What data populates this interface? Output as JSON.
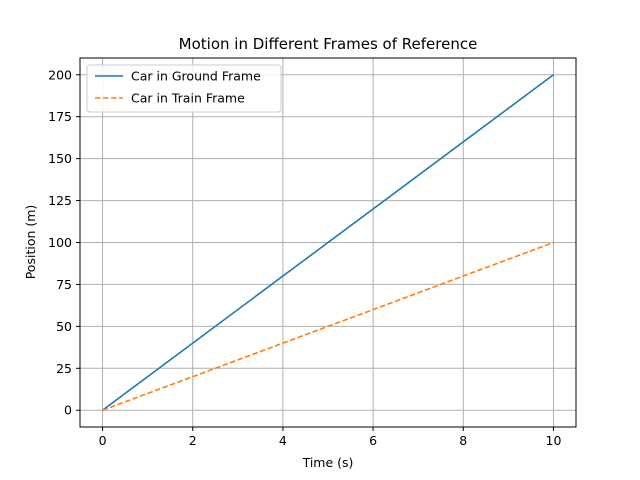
{
  "chart_data": {
    "type": "line",
    "title": "Motion in Different Frames of Reference",
    "xlabel": "Time (s)",
    "ylabel": "Position (m)",
    "xlim": [
      -0.5,
      10.5
    ],
    "ylim": [
      -10,
      210
    ],
    "xticks": [
      0,
      2,
      4,
      6,
      8,
      10
    ],
    "yticks": [
      0,
      25,
      50,
      75,
      100,
      125,
      150,
      175,
      200
    ],
    "grid": true,
    "legend_position": "upper-left",
    "series": [
      {
        "name": "Car in Ground Frame",
        "color": "#1f77b4",
        "style": "solid",
        "x": [
          0,
          10
        ],
        "y": [
          0,
          200
        ]
      },
      {
        "name": "Car in Train Frame",
        "color": "#ff7f0e",
        "style": "dashed",
        "x": [
          0,
          10
        ],
        "y": [
          0,
          100
        ]
      }
    ]
  }
}
